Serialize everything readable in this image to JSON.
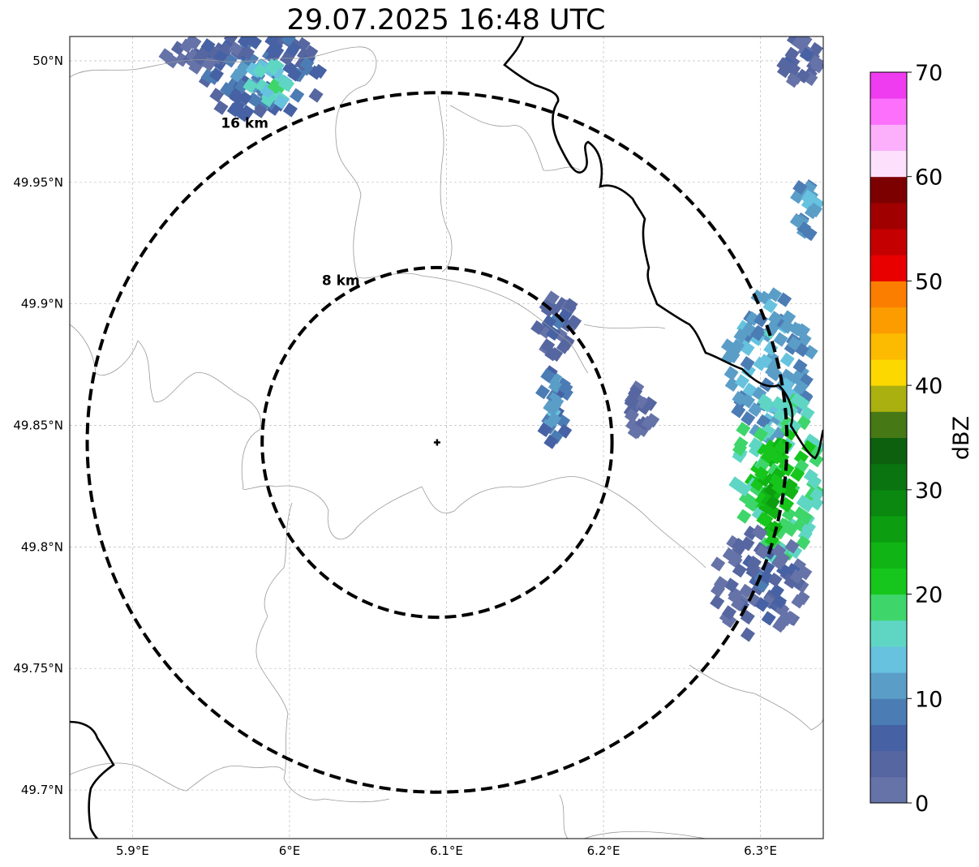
{
  "title": "29.07.2025 16:48 UTC",
  "map": {
    "lon_range": [
      5.86,
      6.34
    ],
    "lat_range": [
      49.68,
      50.01
    ],
    "lon_ticks": [
      {
        "value": 5.9,
        "label": "5.9°E"
      },
      {
        "value": 6.0,
        "label": "6°E"
      },
      {
        "value": 6.1,
        "label": "6.1°E"
      },
      {
        "value": 6.2,
        "label": "6.2°E"
      },
      {
        "value": 6.3,
        "label": "6.3°E"
      }
    ],
    "lat_ticks": [
      {
        "value": 50.0,
        "label": "50°N"
      },
      {
        "value": 49.95,
        "label": "49.95°N"
      },
      {
        "value": 49.9,
        "label": "49.9°N"
      },
      {
        "value": 49.85,
        "label": "49.85°N"
      },
      {
        "value": 49.8,
        "label": "49.8°N"
      },
      {
        "value": 49.75,
        "label": "49.75°N"
      },
      {
        "value": 49.7,
        "label": "49.7°N"
      }
    ],
    "center": {
      "lon": 6.094,
      "lat": 49.843
    },
    "rings": [
      {
        "radius_km": 8,
        "label": "8 km"
      },
      {
        "radius_km": 16,
        "label": "16 km"
      }
    ],
    "grid": true
  },
  "colorbar": {
    "label": "dBZ",
    "min": 0,
    "max": 70,
    "step": 2.5,
    "ticks": [
      0,
      10,
      20,
      30,
      40,
      50,
      60,
      70
    ],
    "colors": [
      "#6673a8",
      "#5666a0",
      "#4662a4",
      "#4c7cb4",
      "#5a9ec8",
      "#66c2de",
      "#5fd6c4",
      "#3ed66a",
      "#16c61c",
      "#10b414",
      "#0c9e10",
      "#0a8810",
      "#0a7410",
      "#0c600e",
      "#467816",
      "#aab010",
      "#fcd800",
      "#fcba00",
      "#fc9c00",
      "#fc7e00",
      "#e80000",
      "#c40000",
      "#a00000",
      "#7c0000",
      "#fce0fc",
      "#fcb0fc",
      "#fc70fc",
      "#f03cf0"
    ]
  },
  "echoes": [
    {
      "name": "nw-cluster",
      "lon": 5.982,
      "lat": 49.995,
      "rlon": 0.042,
      "rlat": 0.018,
      "dbz": 9
    },
    {
      "name": "nw-cluster-core",
      "lon": 5.986,
      "lat": 49.99,
      "rlon": 0.014,
      "rlat": 0.01,
      "dbz": 18
    },
    {
      "name": "nw-cluster-west",
      "lon": 5.945,
      "lat": 50.003,
      "rlon": 0.025,
      "rlat": 0.006,
      "dbz": 5
    },
    {
      "name": "ne-corner",
      "lon": 6.325,
      "lat": 50.0,
      "rlon": 0.012,
      "rlat": 0.01,
      "dbz": 6
    },
    {
      "name": "east-edge",
      "lon": 6.33,
      "lat": 49.94,
      "rlon": 0.008,
      "rlat": 0.012,
      "dbz": 14
    },
    {
      "name": "cell-a",
      "lon": 6.17,
      "lat": 49.892,
      "rlon": 0.012,
      "rlat": 0.013,
      "dbz": 6
    },
    {
      "name": "cell-b",
      "lon": 6.168,
      "lat": 49.858,
      "rlon": 0.01,
      "rlat": 0.016,
      "dbz": 11
    },
    {
      "name": "cell-c",
      "lon": 6.224,
      "lat": 49.856,
      "rlon": 0.008,
      "rlat": 0.011,
      "dbz": 6
    },
    {
      "name": "east-band-upper",
      "lon": 6.305,
      "lat": 49.875,
      "rlon": 0.028,
      "rlat": 0.03,
      "dbz": 14
    },
    {
      "name": "east-band-mid",
      "lon": 6.312,
      "lat": 49.83,
      "rlon": 0.028,
      "rlat": 0.035,
      "dbz": 21
    },
    {
      "name": "east-band-core",
      "lon": 6.31,
      "lat": 49.825,
      "rlon": 0.012,
      "rlat": 0.02,
      "dbz": 25
    },
    {
      "name": "east-band-lower",
      "lon": 6.3,
      "lat": 49.785,
      "rlon": 0.03,
      "rlat": 0.022,
      "dbz": 6
    }
  ]
}
